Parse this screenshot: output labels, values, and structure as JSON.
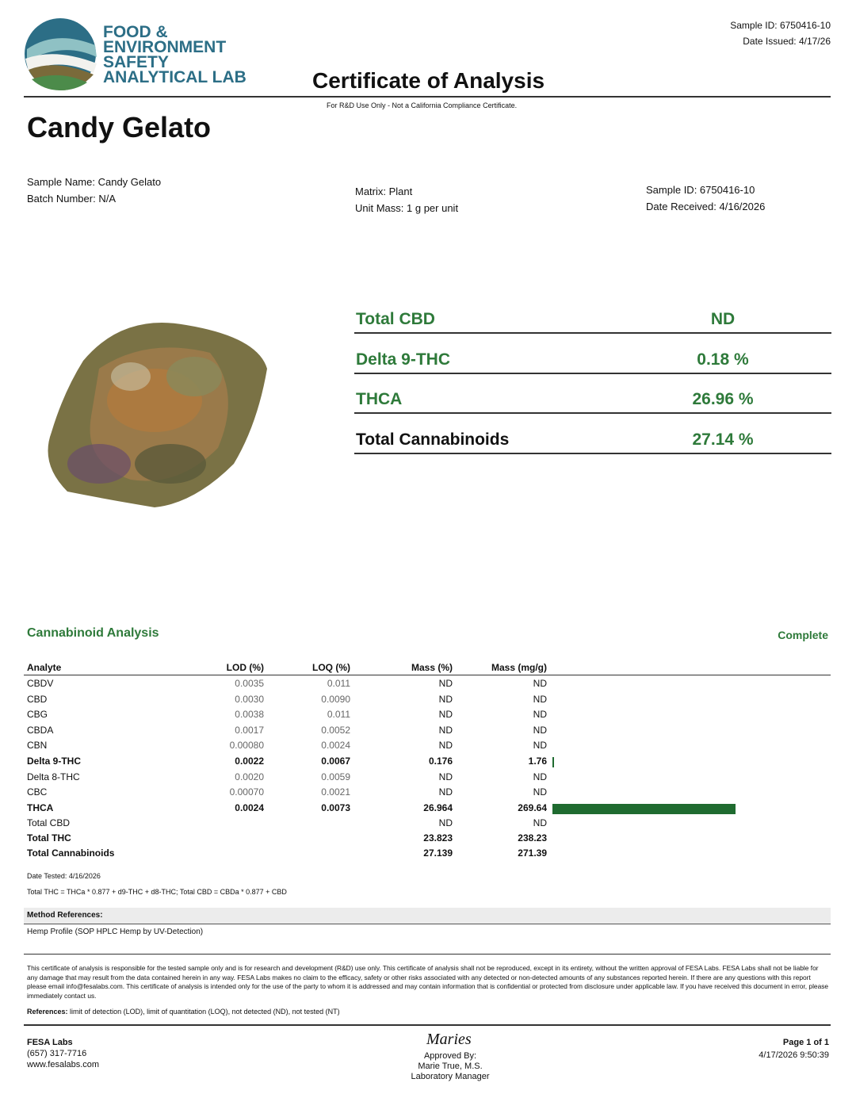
{
  "header": {
    "logo_lines": [
      "FOOD &",
      "ENVIRONMENT",
      "SAFETY",
      "ANALYTICAL LAB"
    ],
    "sample_id": "Sample ID: 6750416-10",
    "date_issued": "Date Issued: 4/17/26",
    "title": "Certificate of Analysis",
    "note": "For R&D Use Only - Not a California Compliance Certificate."
  },
  "product": {
    "name": "Candy Gelato",
    "info_left": [
      "Sample Name: Candy Gelato",
      "Batch Number: N/A"
    ],
    "info_middle": [
      "Matrix: Plant",
      "Unit Mass: 1 g per unit"
    ],
    "info_right": [
      "Sample ID: 6750416-10",
      "Date Received: 4/16/2026"
    ]
  },
  "summary": [
    {
      "label": "Total CBD",
      "value": "ND"
    },
    {
      "label": "Delta 9-THC",
      "value": "0.18 %"
    },
    {
      "label": "THCA",
      "value": "26.96 %"
    },
    {
      "label": "Total Cannabinoids",
      "value": "27.14 %"
    }
  ],
  "analysis": {
    "title": "Cannabinoid Analysis",
    "status": "Complete",
    "columns": [
      "Analyte",
      "LOD (%)",
      "LOQ (%)",
      "Mass (%)",
      "Mass (mg/g)"
    ],
    "analytes": [
      [
        "CBDV",
        "0.0035",
        "0.011",
        "ND",
        "ND"
      ],
      [
        "CBD",
        "0.0030",
        "0.0090",
        "ND",
        "ND"
      ],
      [
        "CBG",
        "0.0038",
        "0.011",
        "ND",
        "ND"
      ],
      [
        "CBDA",
        "0.0017",
        "0.0052",
        "ND",
        "ND"
      ],
      [
        "CBN",
        "0.00080",
        "0.0024",
        "ND",
        "ND"
      ],
      [
        "Delta 9-THC",
        "0.0022",
        "0.0067",
        "0.176",
        "1.76"
      ],
      [
        "Delta 8-THC",
        "0.0020",
        "0.0059",
        "ND",
        "ND"
      ],
      [
        "CBC",
        "0.00070",
        "0.0021",
        "ND",
        "ND"
      ],
      [
        "THCA",
        "0.0024",
        "0.0073",
        "26.964",
        "269.64"
      ]
    ],
    "totals": [
      [
        "Total CBD",
        "ND",
        "ND"
      ],
      [
        "Total THC",
        "23.823",
        "238.23"
      ],
      [
        "Total Cannabinoids",
        "27.139",
        "271.39"
      ]
    ],
    "date_tested": "Date Tested: 4/16/2026",
    "formula": "Total THC = THCa * 0.877 + d9-THC + d8-THC; Total CBD = CBDa * 0.877 + CBD"
  },
  "method": {
    "heading": "Method References:",
    "text": "Hemp Profile (SOP HPLC Hemp by UV-Detection)"
  },
  "disclaimer": "This certificate of analysis is responsible for the tested sample only and is for research and development (R&D) use only. This certificate of analysis shall not be reproduced, except in its entirety, without the written approval of FESA Labs. FESA Labs shall not be liable for any damage that may result from the data contained herein in any way. FESA Labs makes no claim to the efficacy, safety or other risks associated with any detected or non-detected amounts of any substances reported herein. If there are any questions with this report please email info@fesalabs.com. This certificate of analysis is intended only for the use of the party to whom it is addressed and may contain information that is confidential or protected from disclosure under applicable law. If you have received this document in error, please immediately contact us.",
  "references": {
    "label": "References:",
    "text": "limit of detection (LOD), limit of quantitation (LOQ), not detected (ND), not tested (NT)"
  },
  "footer": {
    "left": [
      "FESA Labs",
      "(657) 317-7716",
      "www.fesalabs.com"
    ],
    "signature": "Maries",
    "center": [
      "Approved By:",
      "Marie True, M.S.",
      "Laboratory Manager"
    ],
    "right": [
      "Page 1 of 1",
      "4/17/2026 9:50:39"
    ]
  }
}
